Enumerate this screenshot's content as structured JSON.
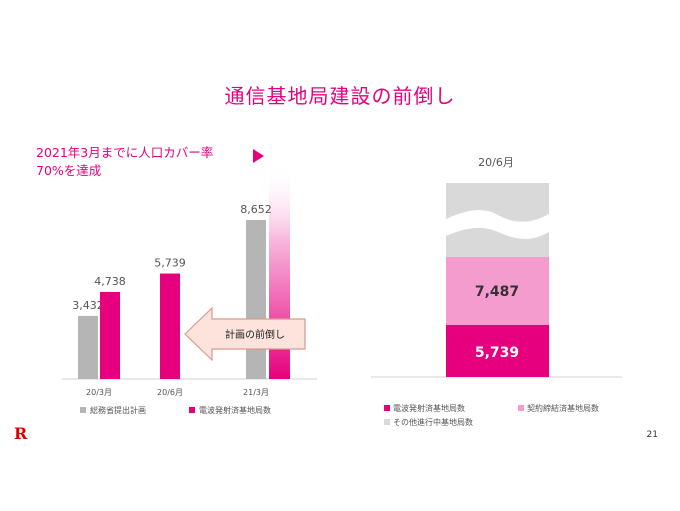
{
  "title": "通信基地局建設の前倒し",
  "callout": {
    "line1": "2021年3月までに人口カバー率",
    "line2": "70%を達成"
  },
  "arrow_label": "計画の前倒し",
  "page_number": "21",
  "logo": "R",
  "colors": {
    "magenta": "#e6007e",
    "gray": "#b5b5b5",
    "pink": "#f59ccf",
    "lightgray": "#d9d9d9",
    "arrow_fill": "#fde3dc",
    "arrow_stroke": "#d99a8c"
  },
  "chart_data": [
    {
      "type": "bar",
      "categories": [
        "20/3月",
        "20/6月",
        "21/3月"
      ],
      "series": [
        {
          "name": "総務省提出計画",
          "color": "#b5b5b5",
          "values": [
            3432,
            null,
            8652
          ]
        },
        {
          "name": "電波発射済基地局数",
          "color": "#e6007e",
          "values": [
            4738,
            5739,
            null
          ]
        }
      ],
      "data_labels": [
        "3,432",
        "4,738",
        "5,739",
        "8,652"
      ]
    },
    {
      "type": "bar",
      "stacked": true,
      "categories": [
        "20/6月"
      ],
      "series": [
        {
          "name": "電波発射済基地局数",
          "color": "#e6007e",
          "value": 5739,
          "label": "5,739"
        },
        {
          "name": "契約締結済基地局数",
          "color": "#f59ccf",
          "value": 7487,
          "label": "7,487"
        },
        {
          "name": "その他進行中基地局数",
          "color": "#d9d9d9",
          "value": null
        }
      ]
    }
  ]
}
